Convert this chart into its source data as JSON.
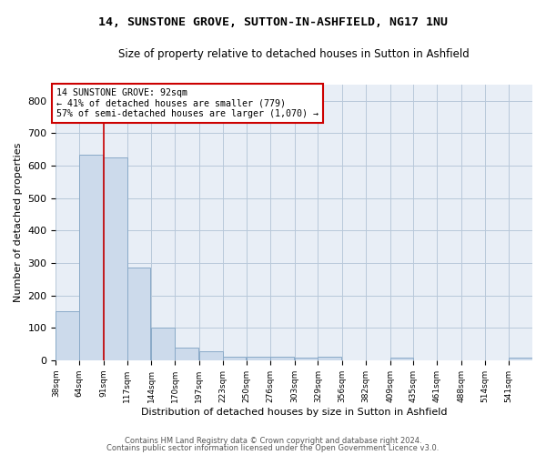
{
  "title": "14, SUNSTONE GROVE, SUTTON-IN-ASHFIELD, NG17 1NU",
  "subtitle": "Size of property relative to detached houses in Sutton in Ashfield",
  "xlabel": "Distribution of detached houses by size in Sutton in Ashfield",
  "ylabel": "Number of detached properties",
  "bar_color": "#ccdaeb",
  "bar_edge_color": "#8aaac8",
  "grid_color": "#b8c8da",
  "bg_color": "#e8eef6",
  "annotation_box_color": "#cc0000",
  "annotation_line_color": "#cc0000",
  "property_line_x": 91,
  "annotation_text": "14 SUNSTONE GROVE: 92sqm\n← 41% of detached houses are smaller (779)\n57% of semi-detached houses are larger (1,070) →",
  "footer1": "Contains HM Land Registry data © Crown copyright and database right 2024.",
  "footer2": "Contains public sector information licensed under the Open Government Licence v3.0.",
  "bins": [
    38,
    64,
    91,
    117,
    144,
    170,
    197,
    223,
    250,
    276,
    303,
    329,
    356,
    382,
    409,
    435,
    461,
    488,
    514,
    541,
    567
  ],
  "values": [
    150,
    635,
    625,
    285,
    100,
    40,
    27,
    10,
    10,
    10,
    8,
    10,
    0,
    0,
    8,
    0,
    0,
    0,
    0,
    8
  ],
  "ylim": [
    0,
    850
  ],
  "yticks": [
    0,
    100,
    200,
    300,
    400,
    500,
    600,
    700,
    800
  ]
}
